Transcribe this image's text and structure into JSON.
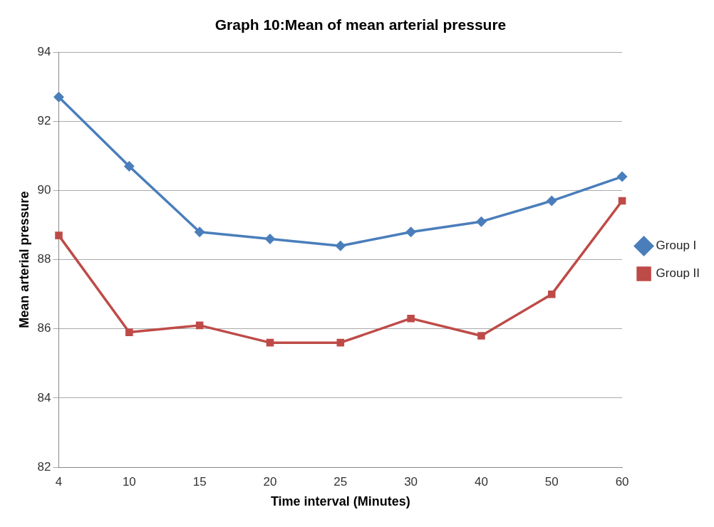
{
  "chart_data": {
    "type": "line",
    "title": "Graph 10:Mean of mean arterial pressure",
    "xlabel": "Time interval (Minutes)",
    "ylabel": "Mean arterial pressure",
    "categories": [
      "4",
      "10",
      "15",
      "20",
      "25",
      "30",
      "40",
      "50",
      "60"
    ],
    "series": [
      {
        "name": "Group I",
        "color": "#4a7ebb",
        "marker": "diamond",
        "values": [
          92.7,
          90.7,
          88.8,
          88.6,
          88.4,
          88.8,
          89.1,
          89.7,
          90.4
        ]
      },
      {
        "name": "Group II",
        "color": "#be4b48",
        "marker": "square",
        "values": [
          88.7,
          85.9,
          86.1,
          85.6,
          85.6,
          86.3,
          85.8,
          87.0,
          89.7
        ]
      }
    ],
    "ylim": [
      82,
      94
    ],
    "yticks": [
      82,
      84,
      86,
      88,
      90,
      92,
      94
    ],
    "grid": "y",
    "legend": "right",
    "line_style": "solid"
  }
}
